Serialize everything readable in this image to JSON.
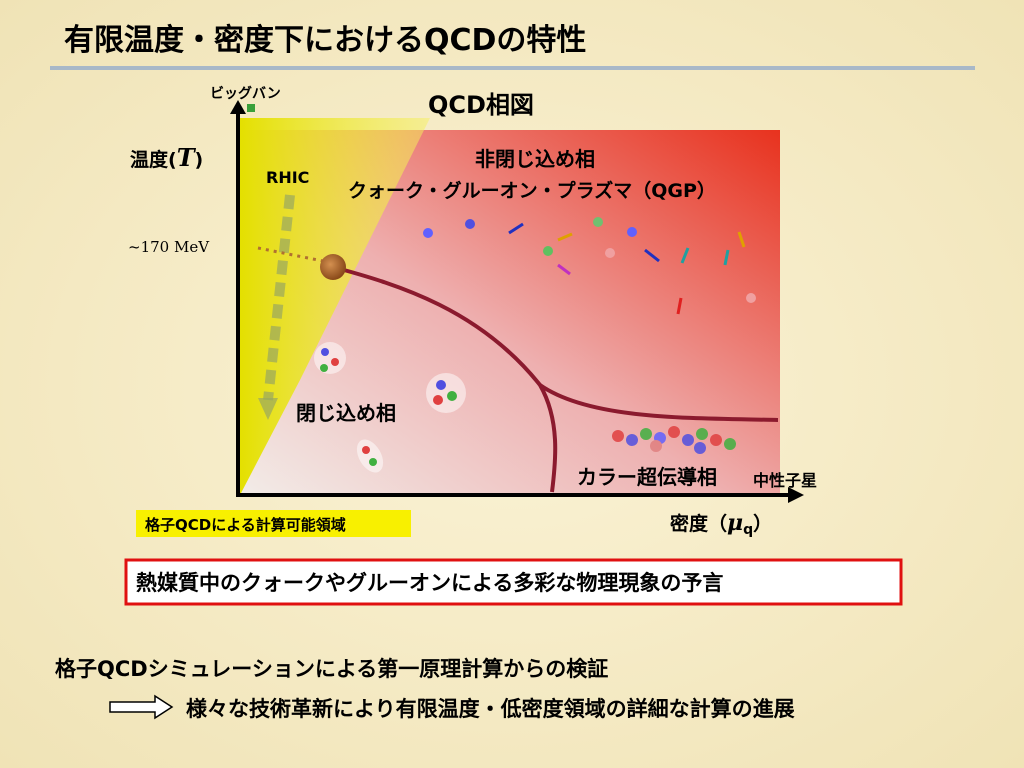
{
  "header": {
    "title": "有限温度・密度下におけるQCDの特性"
  },
  "diagram": {
    "title": "QCD相図",
    "big_bang": "ビッグバン",
    "rhic": "RHIC",
    "y_axis": {
      "prefix": "温度(",
      "symbol": "T",
      "suffix": ")"
    },
    "temperature_mark": "~170 MeV",
    "deconfined": {
      "label": "非閉じ込め相",
      "sublabel": "クォーク・グルーオン・プラズマ（QGP）"
    },
    "confined": "閉じ込め相",
    "color_superconductor": "カラー超伝導相",
    "neutron_star": "中性子星",
    "lattice_region": "格子QCDによる計算可能領域",
    "x_axis": {
      "prefix": "密度（",
      "symbol": "μ",
      "subscript": "q",
      "suffix": "）"
    }
  },
  "highlight": "熱媒質中のクォークやグルーオンによる多彩な物理現象の予言",
  "bullets": {
    "main": "格子QCDシミュレーションによる第一原理計算からの検証",
    "sub": "様々な技術革新により有限温度・低密度領域の詳細な計算の進展"
  }
}
